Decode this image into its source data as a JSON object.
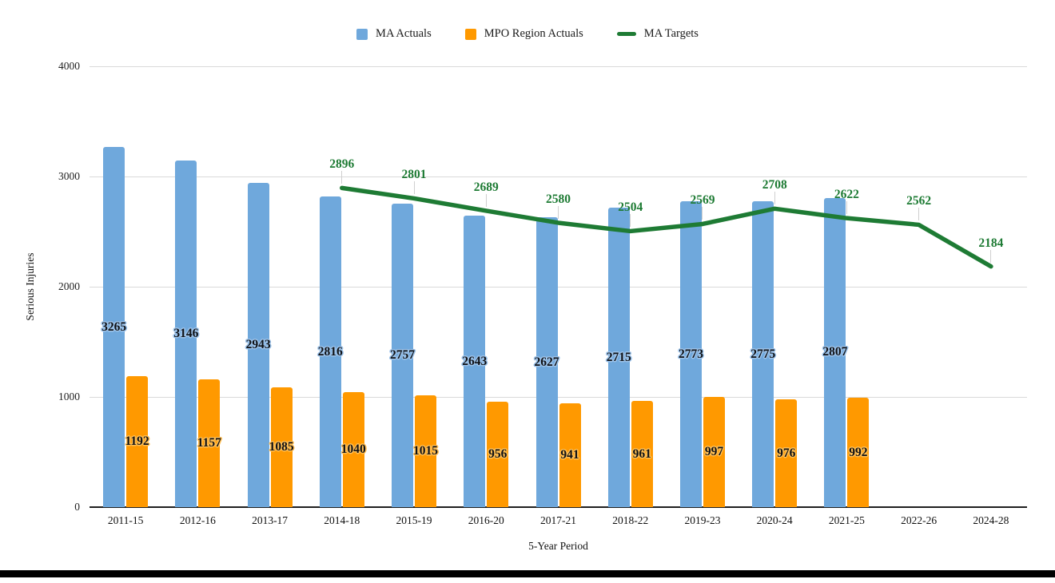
{
  "chart_data": {
    "type": "bar+line",
    "title": "",
    "xlabel": "5-Year Period",
    "ylabel": "Serious Injuries",
    "ylim": [
      0,
      4000
    ],
    "yticks": [
      0,
      1000,
      2000,
      3000,
      4000
    ],
    "grid": true,
    "legend_position": "top",
    "categories": [
      "2011-15",
      "2012-16",
      "2013-17",
      "2014-18",
      "2015-19",
      "2016-20",
      "2017-21",
      "2018-22",
      "2019-23",
      "2020-24",
      "2021-25",
      "2022-26",
      "2024-28"
    ],
    "series": [
      {
        "name": "MA Actuals",
        "kind": "bar",
        "color": "#6fa8dc",
        "label_halo": "#9dc3ea",
        "values": [
          3265,
          3146,
          2943,
          2816,
          2757,
          2643,
          2627,
          2715,
          2773,
          2775,
          2807,
          null,
          null
        ]
      },
      {
        "name": "MPO Region Actuals",
        "kind": "bar",
        "color": "#ff9900",
        "label_halo": "#ffbf55",
        "values": [
          1192,
          1157,
          1085,
          1040,
          1015,
          956,
          941,
          961,
          997,
          976,
          992,
          null,
          null
        ]
      },
      {
        "name": "MA Targets",
        "kind": "line",
        "color": "#1e7b34",
        "values": [
          null,
          null,
          null,
          2896,
          2801,
          2689,
          2580,
          2504,
          2569,
          2708,
          2622,
          2562,
          2184
        ]
      }
    ]
  },
  "page": {
    "bottom_rule_color": "#000000",
    "gridline_color": "#d9d9d9",
    "axis_color": "#1f1f1f"
  }
}
